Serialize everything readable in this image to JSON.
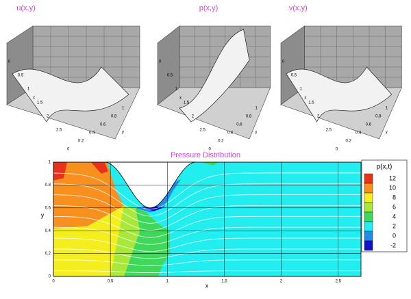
{
  "surface_panels": [
    {
      "title": "u(x,y)",
      "x_label": "x",
      "y_label": "y",
      "x_ticks": [
        "0",
        "0.5",
        "1",
        "1.5",
        "2",
        "2.5"
      ],
      "y_ticks": [
        "0",
        "0.2",
        "0.4",
        "0.6",
        "0.8",
        "1"
      ]
    },
    {
      "title": "p(x,y)",
      "x_label": "x",
      "y_label": "y",
      "x_ticks": [
        "0",
        "0.5",
        "1",
        "1.5",
        "2",
        "2.5"
      ],
      "y_ticks": [
        "0",
        "0.2",
        "0.4",
        "0.6",
        "0.8",
        "1"
      ]
    },
    {
      "title": "v(x,y)",
      "x_label": "x",
      "y_label": "y",
      "x_ticks": [
        "0",
        "0.5",
        "1",
        "1.5",
        "2",
        "2.5"
      ],
      "y_ticks": [
        "0",
        "0.2",
        "0.4",
        "0.6",
        "0.8",
        "1"
      ]
    }
  ],
  "chart_data": {
    "type": "contour",
    "title": "Pressure Distribution",
    "x_label": "x",
    "y_label": "y",
    "xlim": [
      0,
      2.7
    ],
    "ylim": [
      0,
      1
    ],
    "xticks": [
      0,
      0.5,
      1,
      1.5,
      2,
      2.5
    ],
    "yticks": [
      0,
      0.2,
      0.4,
      0.6,
      0.8,
      1
    ],
    "grid": true,
    "legend_title": "p(x,t)",
    "levels": [
      12,
      10,
      8,
      6,
      4,
      2,
      0,
      -2
    ],
    "colors": [
      "#e8321c",
      "#f7901e",
      "#f5ee1e",
      "#a8e83a",
      "#3ed85a",
      "#22eef0",
      "#1e8ee8",
      "#1212c8"
    ],
    "regions": [
      {
        "level": 2,
        "x": [
          0,
          0,
          2.7,
          2.7
        ],
        "y": [
          0,
          1,
          1,
          0
        ]
      },
      {
        "level": 10,
        "x": [
          0,
          0,
          0.47,
          0.55,
          0.62,
          0.45,
          0.3
        ],
        "y": [
          0.42,
          1,
          1,
          0.75,
          0.62,
          0.5,
          0.44
        ]
      },
      {
        "level": 12,
        "x": [
          0,
          0,
          0.12,
          0.09
        ],
        "y": [
          0.84,
          1,
          1,
          0.86
        ]
      },
      {
        "level": 12,
        "x": [
          0.33,
          0.45,
          0.48,
          0.42
        ],
        "y": [
          1,
          1,
          0.92,
          0.9
        ]
      },
      {
        "level": 8,
        "x": [
          0,
          0,
          0.3,
          0.62,
          0.56,
          0.5
        ],
        "y": [
          0,
          0.42,
          0.44,
          0.62,
          0.3,
          0
        ]
      },
      {
        "level": 6,
        "x": [
          0.5,
          0.56,
          0.62,
          0.72,
          0.76,
          0.62
        ],
        "y": [
          0,
          0.3,
          0.62,
          0.6,
          0.4,
          0
        ]
      },
      {
        "level": 4,
        "x": [
          0.62,
          0.76,
          0.72,
          0.82,
          0.92,
          1.02,
          1.02,
          0.96,
          0.92
        ],
        "y": [
          0,
          0.4,
          0.6,
          0.56,
          0.46,
          0.4,
          0.2,
          0.1,
          0
        ]
      },
      {
        "level": 0,
        "x": [
          0.72,
          0.85,
          0.97,
          1.05,
          1.12,
          1.0,
          0.9
        ],
        "y": [
          0.6,
          0.56,
          0.6,
          0.75,
          0.85,
          0.8,
          0.64
        ]
      },
      {
        "level": -2,
        "x": [
          0.8,
          0.88,
          0.96,
          0.88
        ],
        "y": [
          0.6,
          0.57,
          0.6,
          0.62
        ]
      },
      {
        "level": 4,
        "x": [
          1.3,
          1.45,
          1.4
        ],
        "y": [
          1,
          1,
          0.97
        ]
      }
    ]
  }
}
